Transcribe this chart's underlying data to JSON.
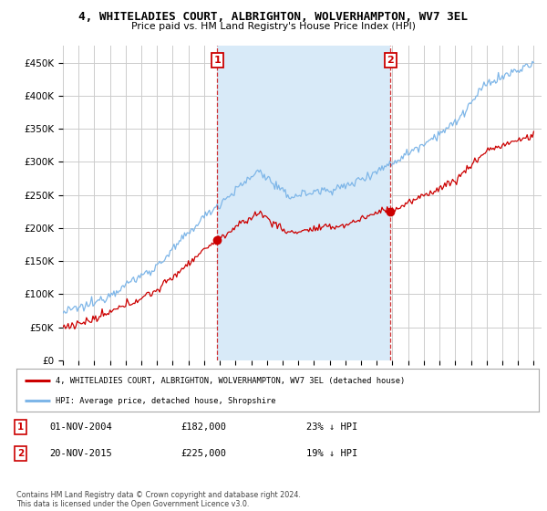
{
  "title": "4, WHITELADIES COURT, ALBRIGHTON, WOLVERHAMPTON, WV7 3EL",
  "subtitle": "Price paid vs. HM Land Registry's House Price Index (HPI)",
  "ylabel_ticks": [
    "£0",
    "£50K",
    "£100K",
    "£150K",
    "£200K",
    "£250K",
    "£300K",
    "£350K",
    "£400K",
    "£450K"
  ],
  "ytick_values": [
    0,
    50000,
    100000,
    150000,
    200000,
    250000,
    300000,
    350000,
    400000,
    450000
  ],
  "ylim": [
    0,
    475000
  ],
  "xlim_start": 1995.0,
  "xlim_end": 2025.5,
  "hpi_color": "#7EB6E8",
  "price_color": "#CC0000",
  "shade_color": "#D8EAF8",
  "marker1_year": 2004.83,
  "marker2_year": 2015.88,
  "marker1_price": 182000,
  "marker2_price": 225000,
  "legend_label1": "4, WHITELADIES COURT, ALBRIGHTON, WOLVERHAMPTON, WV7 3EL (detached house)",
  "legend_label2": "HPI: Average price, detached house, Shropshire",
  "annotation1_date": "01-NOV-2004",
  "annotation1_price": "£182,000",
  "annotation1_pct": "23% ↓ HPI",
  "annotation2_date": "20-NOV-2015",
  "annotation2_price": "£225,000",
  "annotation2_pct": "19% ↓ HPI",
  "footer": "Contains HM Land Registry data © Crown copyright and database right 2024.\nThis data is licensed under the Open Government Licence v3.0.",
  "background_color": "#ffffff",
  "plot_bg_color": "#ffffff",
  "grid_color": "#cccccc"
}
